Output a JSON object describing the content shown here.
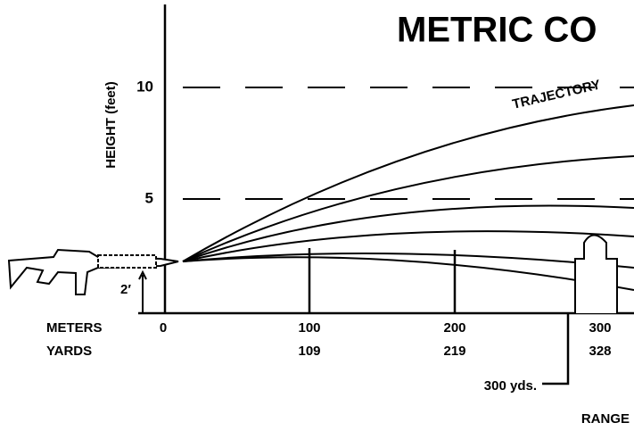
{
  "title": "METRIC CO",
  "y_axis": {
    "label": "HEIGHT (feet)",
    "ticks": [
      "10",
      "5"
    ]
  },
  "curve_label": "TRAJECTORY",
  "height_marker": "2′",
  "range_rows": {
    "meters_label": "METERS",
    "yards_label": "YARDS",
    "meters": [
      "0",
      "100",
      "200",
      "300"
    ],
    "yards": [
      "109",
      "219",
      "328"
    ]
  },
  "callout": "300 yds.",
  "x_axis_label": "RANGE"
}
